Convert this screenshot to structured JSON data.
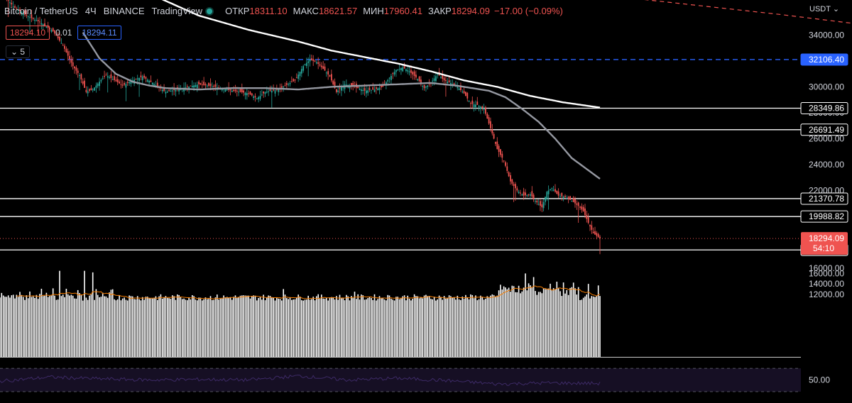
{
  "legend": {
    "symbol": "Bitcoin / TetherUS",
    "interval": "4Ч",
    "exchange": "BINANCE",
    "source": "TradingView",
    "open_label": "ОТКР",
    "open": "18311.10",
    "high_label": "МАКС",
    "high": "18621.57",
    "low_label": "МИН",
    "low": "17960.41",
    "close_label": "ЗАКР",
    "close": "18294.09",
    "change": "−17.00 (−0.09%)"
  },
  "order": {
    "sell": "18294.10",
    "spread": "0.01",
    "buy": "18294.11"
  },
  "indicators_toggle": {
    "count": "5"
  },
  "currency": "USDT",
  "colors": {
    "up": "#26a69a",
    "down": "#ef5350",
    "volume": "#ffffff",
    "ma_fast": "#9598a1",
    "ma_slow": "#ffffff",
    "level": "#ffffff",
    "level_blue": "#2962ff",
    "trend": "#ef5350",
    "rsi": "#7e57c2",
    "volume_ma": "#f57c00"
  },
  "chart_data": {
    "type": "candlestick",
    "price_ylim": [
      16000,
      35500
    ],
    "price_ticks": [
      34000,
      30000,
      28000,
      26000,
      24000,
      22000,
      20000,
      16000
    ],
    "price_tick_labels": [
      "34000.00",
      "30000.00",
      "28000.00",
      "26000.00",
      "24000.00",
      "22000.00",
      "20000.00",
      "16000.00"
    ],
    "horizontal_levels": [
      {
        "value": 32106.4,
        "label": "32106.40",
        "style": "dashed-blue"
      },
      {
        "value": 28349.86,
        "label": "28349.86",
        "style": "solid"
      },
      {
        "value": 26691.49,
        "label": "26691.49",
        "style": "solid"
      },
      {
        "value": 21370.78,
        "label": "21370.78",
        "style": "solid"
      },
      {
        "value": 19988.82,
        "label": "19988.82",
        "style": "solid"
      },
      {
        "value": 17409.41,
        "label": "17409.41",
        "style": "solid"
      }
    ],
    "last_price": {
      "value": 18294.09,
      "label": "18294.09",
      "countdown": "54:10"
    },
    "price_path": [
      [
        0,
        37500
      ],
      [
        8,
        36200
      ],
      [
        16,
        35500
      ],
      [
        24,
        35000
      ],
      [
        32,
        34300
      ],
      [
        38,
        33200
      ],
      [
        44,
        31600
      ],
      [
        48,
        30900
      ],
      [
        52,
        29600
      ],
      [
        56,
        29800
      ],
      [
        60,
        30400
      ],
      [
        64,
        30900
      ],
      [
        68,
        30600
      ],
      [
        74,
        30100
      ],
      [
        80,
        30500
      ],
      [
        86,
        30800
      ],
      [
        92,
        30300
      ],
      [
        100,
        29600
      ],
      [
        110,
        29900
      ],
      [
        120,
        30200
      ],
      [
        130,
        30000
      ],
      [
        140,
        29700
      ],
      [
        150,
        29500
      ],
      [
        155,
        29100
      ],
      [
        160,
        29600
      ],
      [
        168,
        29800
      ],
      [
        178,
        30500
      ],
      [
        183,
        31600
      ],
      [
        187,
        32100
      ],
      [
        191,
        31900
      ],
      [
        195,
        31400
      ],
      [
        199,
        30800
      ],
      [
        203,
        29600
      ],
      [
        208,
        30200
      ],
      [
        214,
        30000
      ],
      [
        220,
        29700
      ],
      [
        226,
        29800
      ],
      [
        231,
        30000
      ],
      [
        235,
        30700
      ],
      [
        239,
        31300
      ],
      [
        243,
        31500
      ],
      [
        247,
        31200
      ],
      [
        252,
        30600
      ],
      [
        256,
        29900
      ],
      [
        260,
        30300
      ],
      [
        264,
        31000
      ],
      [
        268,
        30500
      ],
      [
        272,
        30300
      ],
      [
        276,
        30000
      ],
      [
        280,
        29500
      ],
      [
        284,
        28700
      ],
      [
        288,
        28600
      ],
      [
        292,
        28300
      ],
      [
        296,
        26800
      ],
      [
        300,
        25200
      ],
      [
        304,
        24300
      ],
      [
        308,
        22700
      ],
      [
        312,
        22000
      ],
      [
        316,
        21600
      ],
      [
        320,
        21700
      ],
      [
        323,
        21200
      ],
      [
        327,
        20700
      ],
      [
        330,
        21900
      ],
      [
        333,
        22200
      ],
      [
        337,
        21600
      ],
      [
        341,
        21500
      ],
      [
        345,
        21200
      ],
      [
        349,
        20800
      ],
      [
        352,
        20400
      ],
      [
        355,
        19500
      ],
      [
        358,
        18700
      ],
      [
        362,
        18294
      ]
    ],
    "ma_fast_path": [
      [
        50,
        34200
      ],
      [
        60,
        32200
      ],
      [
        70,
        31000
      ],
      [
        80,
        30400
      ],
      [
        90,
        30100
      ],
      [
        100,
        29900
      ],
      [
        120,
        29800
      ],
      [
        140,
        29900
      ],
      [
        160,
        29900
      ],
      [
        180,
        29800
      ],
      [
        200,
        30000
      ],
      [
        220,
        30100
      ],
      [
        240,
        30200
      ],
      [
        260,
        30300
      ],
      [
        275,
        30100
      ],
      [
        285,
        29900
      ],
      [
        295,
        29700
      ],
      [
        305,
        29200
      ],
      [
        315,
        28300
      ],
      [
        325,
        27300
      ],
      [
        335,
        26000
      ],
      [
        345,
        24500
      ],
      [
        362,
        22900
      ]
    ],
    "ma_slow_path": [
      [
        90,
        37200
      ],
      [
        120,
        35500
      ],
      [
        150,
        34400
      ],
      [
        180,
        33500
      ],
      [
        200,
        32800
      ],
      [
        220,
        32300
      ],
      [
        240,
        31800
      ],
      [
        260,
        31200
      ],
      [
        280,
        30500
      ],
      [
        300,
        30000
      ],
      [
        320,
        29300
      ],
      [
        340,
        28800
      ],
      [
        362,
        28400
      ]
    ],
    "trend_line_path": [
      [
        370,
        37000
      ],
      [
        420,
        36300
      ],
      [
        470,
        35600
      ],
      [
        515,
        34900
      ]
    ],
    "volume_ylim": [
      0,
      17000
    ],
    "volume_ticks": [
      16000,
      14000,
      12000
    ],
    "volume_tick_labels": [
      "16000.00",
      "14000.00",
      "12000.00"
    ],
    "volume_spikes": [
      [
        36,
        16500
      ],
      [
        51,
        16500
      ],
      [
        56,
        16200
      ],
      [
        171,
        13000
      ],
      [
        214,
        12500
      ],
      [
        230,
        11300
      ],
      [
        317,
        16000
      ],
      [
        322,
        15300
      ],
      [
        355,
        14000
      ],
      [
        361,
        13700
      ]
    ],
    "volume_base": 10800,
    "volume_max": 13000,
    "rsi_ylim": [
      30,
      75
    ],
    "rsi_levels": [
      70,
      50,
      30
    ],
    "rsi_tick_labels": [
      "50.00"
    ],
    "rsi_path": [
      [
        0,
        48
      ],
      [
        30,
        55
      ],
      [
        60,
        52
      ],
      [
        90,
        50
      ],
      [
        120,
        51
      ],
      [
        150,
        50
      ],
      [
        180,
        57
      ],
      [
        210,
        50
      ],
      [
        240,
        53
      ],
      [
        270,
        49
      ],
      [
        300,
        43
      ],
      [
        330,
        45
      ],
      [
        362,
        44
      ]
    ]
  }
}
